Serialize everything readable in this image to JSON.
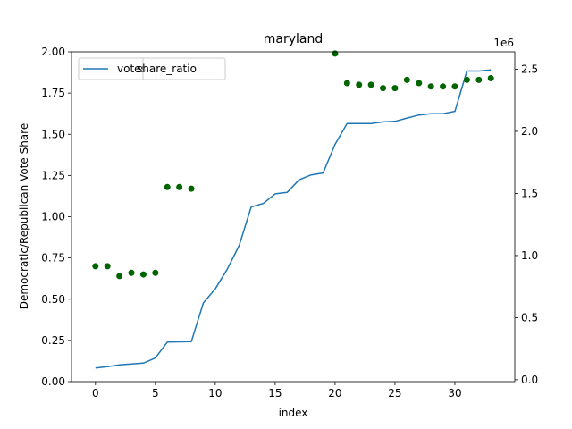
{
  "chart_data": {
    "type": "line",
    "title": "maryland",
    "xlabel": "index",
    "ylabel": "Democratic/Republican Vote Share",
    "xlim": [
      -2,
      35
    ],
    "ylim": [
      0.0,
      2.0
    ],
    "y2lim": [
      -15000,
      2640000
    ],
    "y2_offset_label": "1e6",
    "x_ticks": [
      0,
      5,
      10,
      15,
      20,
      25,
      30
    ],
    "y_ticks": [
      0.0,
      0.25,
      0.5,
      0.75,
      1.0,
      1.25,
      1.5,
      1.75,
      2.0
    ],
    "y_tick_labels": [
      "0.00",
      "0.25",
      "0.50",
      "0.75",
      "1.00",
      "1.25",
      "1.50",
      "1.75",
      "2.00"
    ],
    "y2_ticks": [
      0,
      500000,
      1000000,
      1500000,
      2000000,
      2500000
    ],
    "y2_tick_labels": [
      "0.0",
      "0.5",
      "1.0",
      "1.5",
      "2.0",
      "2.5"
    ],
    "legend": {
      "placement": "upper-left",
      "entries": [
        "votes",
        "share_ratio"
      ]
    },
    "series": [
      {
        "name": "votes",
        "kind": "line",
        "axis": "right",
        "color": "#1f77b4",
        "x": [
          0,
          1,
          2,
          3,
          4,
          5,
          6,
          7,
          8,
          9,
          10,
          11,
          12,
          13,
          14,
          15,
          16,
          17,
          18,
          19,
          20,
          21,
          22,
          23,
          24,
          25,
          26,
          27,
          28,
          29,
          30,
          31,
          32,
          33
        ],
        "values": [
          95000,
          105000,
          120000,
          127000,
          134000,
          175000,
          303000,
          305000,
          307000,
          618000,
          732000,
          890000,
          1082000,
          1392000,
          1419000,
          1497000,
          1508000,
          1610000,
          1649000,
          1664000,
          1895000,
          2062000,
          2062000,
          2062000,
          2076000,
          2080000,
          2107000,
          2131000,
          2142000,
          2142000,
          2161000,
          2485000,
          2485000,
          2495000
        ]
      },
      {
        "name": "share_ratio",
        "kind": "scatter",
        "axis": "left",
        "color": "#006400",
        "x": [
          0,
          1,
          2,
          3,
          4,
          5,
          6,
          7,
          8,
          20,
          21,
          22,
          23,
          24,
          25,
          26,
          27,
          28,
          29,
          30,
          31,
          32,
          33
        ],
        "values": [
          0.7,
          0.7,
          0.64,
          0.66,
          0.65,
          0.66,
          1.18,
          1.18,
          1.17,
          1.99,
          1.81,
          1.8,
          1.8,
          1.78,
          1.78,
          1.83,
          1.81,
          1.79,
          1.79,
          1.79,
          1.83,
          1.83,
          1.84
        ]
      }
    ]
  }
}
